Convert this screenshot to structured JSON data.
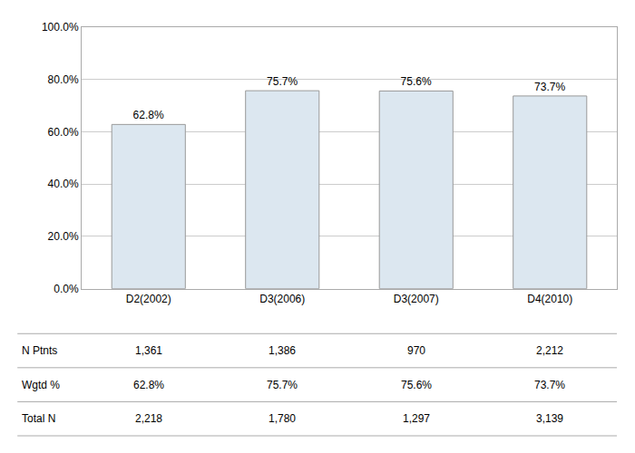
{
  "chart_data": {
    "type": "bar",
    "categories": [
      "D2(2002)",
      "D3(2006)",
      "D3(2007)",
      "D4(2010)"
    ],
    "values": [
      62.8,
      75.7,
      75.6,
      73.7
    ],
    "value_labels": [
      "62.8%",
      "75.7%",
      "75.6%",
      "73.7%"
    ],
    "data_labels": true,
    "color": "#dce7f0",
    "ylim": [
      0,
      100
    ],
    "yticks": [
      {
        "value": 0,
        "label": "0.0%"
      },
      {
        "value": 20,
        "label": "20.0%"
      },
      {
        "value": 40,
        "label": "40.0%"
      },
      {
        "value": 60,
        "label": "60.0%"
      },
      {
        "value": 80,
        "label": "80.0%"
      },
      {
        "value": 100,
        "label": "100.0%"
      }
    ],
    "grid": true,
    "table": {
      "row_labels": [
        "N Ptnts",
        "Wgtd %",
        "Total N"
      ],
      "rows": [
        [
          "1,361",
          "1,386",
          "970",
          "2,212"
        ],
        [
          "62.8%",
          "75.7%",
          "75.6%",
          "73.7%"
        ],
        [
          "2,218",
          "1,780",
          "1,297",
          "3,139"
        ]
      ]
    }
  }
}
